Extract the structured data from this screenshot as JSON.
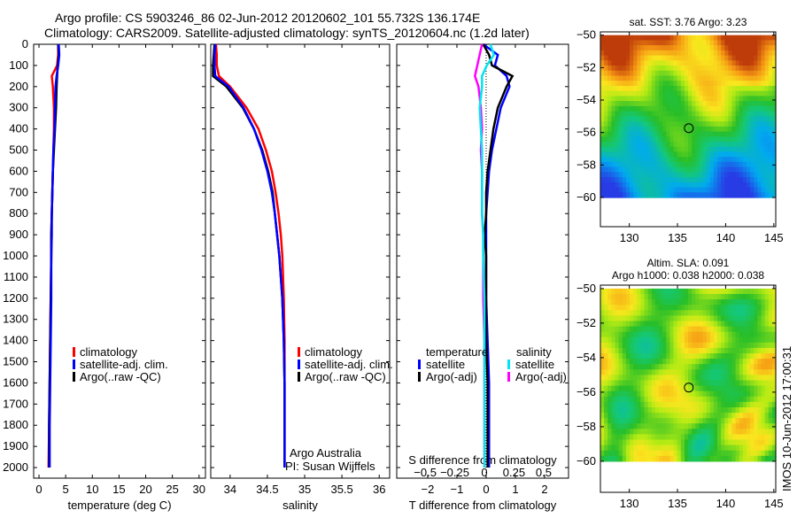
{
  "header": {
    "line1": "Argo profile: CS 5903246_86 02-Jun-2012 20120602_101 55.732S 136.174E",
    "line2": "Climatology: CARS2009. Satellite-adjusted climatology: synTS_20120604.nc (1.2d later)"
  },
  "colors": {
    "climatology": "#ff0000",
    "satellite": "#0000ff",
    "argo": "#000000",
    "sal_satellite": "#00e5ee",
    "sal_argo": "#ff00ff"
  },
  "depths": [
    0,
    50,
    100,
    150,
    200,
    300,
    400,
    500,
    600,
    700,
    800,
    900,
    1000,
    1200,
    1400,
    1600,
    1800,
    2000
  ],
  "chart_data": [
    {
      "type": "line",
      "name": "temperature",
      "xlabel": "temperature (deg C)",
      "xlim": [
        -1,
        31.2
      ],
      "ylim": [
        0,
        2050
      ],
      "xticks": [
        0,
        5,
        10,
        15,
        20,
        25,
        30
      ],
      "yticks": [
        0,
        100,
        200,
        300,
        400,
        500,
        600,
        700,
        800,
        900,
        1000,
        1100,
        1200,
        1300,
        1400,
        1500,
        1600,
        1700,
        1800,
        1900,
        2000
      ],
      "legend": [
        "climatology",
        "satellite-adj. clim.",
        "Argo(..raw -QC)"
      ],
      "series": [
        {
          "name": "climatology",
          "color": "#ff0000",
          "values": [
            3.6,
            3.6,
            3.4,
            2.4,
            2.6,
            2.8,
            2.8,
            2.7,
            2.6,
            2.5,
            2.4,
            2.3,
            2.3,
            2.2,
            2.1,
            2.0,
            1.9,
            1.8
          ]
        },
        {
          "name": "Argo(..raw -QC)",
          "color": "#000000",
          "values": [
            3.6,
            3.7,
            3.5,
            3.4,
            3.3,
            3.2,
            3.0,
            2.8,
            2.6,
            2.5,
            2.4,
            2.3,
            2.3,
            2.2,
            2.1,
            2.0,
            1.9,
            1.9
          ]
        },
        {
          "name": "satellite-adj. clim.",
          "color": "#0000ff",
          "values": [
            3.7,
            3.8,
            3.6,
            3.3,
            3.1,
            3.0,
            2.9,
            2.7,
            2.6,
            2.5,
            2.4,
            2.4,
            2.3,
            2.3,
            2.2,
            2.1,
            2.0,
            2.0
          ]
        }
      ]
    },
    {
      "type": "line",
      "name": "salinity",
      "xlabel": "salinity",
      "xlim": [
        33.74,
        36.14
      ],
      "ylim": [
        0,
        2050
      ],
      "xticks": [
        34,
        34.5,
        35,
        35.5,
        36
      ],
      "legend": [
        "climatology",
        "satellite-adj. clim.",
        "Argo(..raw -QC)"
      ],
      "annotation": [
        "Argo Australia",
        "PI: Susan Wijffels"
      ],
      "series": [
        {
          "name": "climatology",
          "color": "#ff0000",
          "values": [
            33.81,
            33.82,
            33.82,
            33.85,
            34.0,
            34.22,
            34.38,
            34.48,
            34.56,
            34.61,
            34.65,
            34.68,
            34.7,
            34.72,
            34.73,
            34.73,
            34.73,
            34.73
          ]
        },
        {
          "name": "Argo(..raw -QC)",
          "color": "#000000",
          "values": [
            33.79,
            33.78,
            33.77,
            33.77,
            33.95,
            34.17,
            34.32,
            34.43,
            34.51,
            34.57,
            34.6,
            34.63,
            34.66,
            34.7,
            34.72,
            34.73,
            34.73,
            34.73
          ]
        },
        {
          "name": "satellite-adj. clim.",
          "color": "#0000ff",
          "values": [
            33.8,
            33.79,
            33.79,
            33.8,
            33.98,
            34.18,
            34.32,
            34.42,
            34.5,
            34.56,
            34.6,
            34.63,
            34.66,
            34.7,
            34.72,
            34.73,
            34.73,
            34.73
          ]
        }
      ]
    },
    {
      "type": "line",
      "name": "difference",
      "xlabel": "T difference from climatology",
      "x2label": "S difference from climatology",
      "xlim": [
        -3.06,
        2.82
      ],
      "x2lim": [
        -0.74,
        0.71
      ],
      "ylim": [
        0,
        2050
      ],
      "xticks": [
        -2,
        -1,
        0,
        1,
        2
      ],
      "x2ticks": [
        -0.5,
        -0.25,
        0,
        0.25,
        0.5
      ],
      "legend_headers": [
        "temperature",
        "salinity"
      ],
      "legend": [
        "satellite",
        "Argo(-adj)",
        "satellite",
        "Argo(-adj)"
      ],
      "series": [
        {
          "name": "T satellite",
          "color": "#0000ff",
          "axis": "T",
          "values": [
            -0.1,
            0.4,
            0.3,
            0.7,
            0.8,
            0.5,
            0.35,
            0.2,
            0.1,
            0.05,
            0,
            0,
            0,
            0,
            0.05,
            0.1,
            0.1,
            0.1
          ]
        },
        {
          "name": "T Argo(-adj)",
          "color": "#000000",
          "axis": "T",
          "values": [
            -0.1,
            0.1,
            0.2,
            0.9,
            0.7,
            0.4,
            0.25,
            0.15,
            0.05,
            0,
            0,
            -0.05,
            0,
            0,
            0,
            0.05,
            0.05,
            0.05
          ]
        },
        {
          "name": "S Argo(-adj)",
          "color": "#ff00ff",
          "axis": "S",
          "values": [
            -0.02,
            -0.04,
            -0.06,
            -0.08,
            -0.05,
            -0.03,
            -0.02,
            -0.03,
            -0.02,
            -0.02,
            -0.02,
            -0.01,
            -0.01,
            -0.01,
            0,
            0,
            0,
            0
          ]
        },
        {
          "name": "S satellite",
          "color": "#00e5ee",
          "axis": "S",
          "values": [
            0.05,
            0.08,
            0.02,
            -0.02,
            -0.02,
            -0.04,
            -0.03,
            -0.02,
            -0.02,
            -0.02,
            -0.02,
            -0.01,
            -0.01,
            0,
            0,
            0,
            0,
            0
          ]
        }
      ]
    },
    {
      "type": "heatmap",
      "name": "sst-map",
      "title": "sat. SST: 3.76  Argo: 3.23",
      "xlim": [
        127,
        145.2
      ],
      "ylim": [
        -61.8,
        -49.8
      ],
      "xticks": [
        130,
        135,
        140,
        145
      ],
      "yticks": [
        -50,
        -52,
        -54,
        -56,
        -58,
        -60
      ],
      "marker": [
        136.174,
        -55.732
      ]
    },
    {
      "type": "heatmap",
      "name": "sla-map",
      "title": [
        "Altim. SLA: 0.091",
        "Argo h1000: 0.038 h2000: 0.038"
      ],
      "xlim": [
        127,
        145.2
      ],
      "ylim": [
        -61.8,
        -49.8
      ],
      "xticks": [
        130,
        135,
        140,
        145
      ],
      "yticks": [
        -50,
        -52,
        -54,
        -56,
        -58,
        -60
      ],
      "marker": [
        136.174,
        -55.732
      ]
    }
  ],
  "footer": {
    "stamp": "IMOS 10-Jun-2012 17:00:31"
  }
}
